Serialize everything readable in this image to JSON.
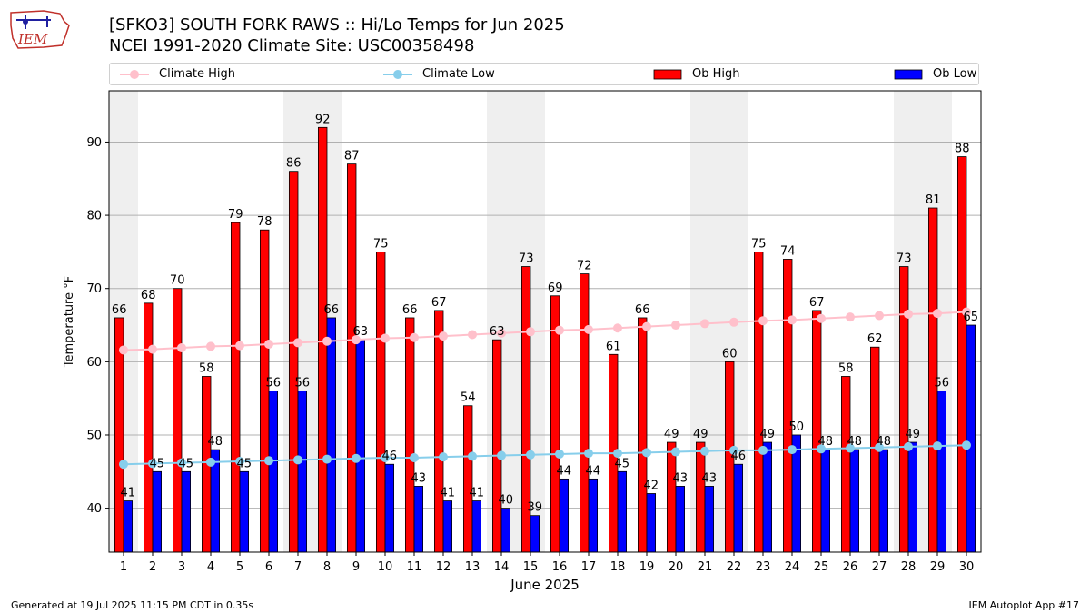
{
  "header": {
    "title": "[SFKO3] SOUTH FORK RAWS :: Hi/Lo Temps for Jun 2025",
    "subtitle": "NCEI 1991-2020 Climate Site: USC00358498",
    "logo_text": "IEM"
  },
  "footer": {
    "left": "Generated at 19 Jul 2025 11:15 PM CDT in 0.35s",
    "right": "IEM Autoplot App #17"
  },
  "legend": {
    "climate_high": "Climate High",
    "climate_low": "Climate Low",
    "ob_high": "Ob High",
    "ob_low": "Ob Low"
  },
  "chart_data": {
    "type": "bar",
    "xlabel": "June 2025",
    "ylabel": "Temperature °F",
    "ylim": [
      34,
      97
    ],
    "yticks": [
      40,
      50,
      60,
      70,
      80,
      90
    ],
    "grid": "horizontal",
    "legend_position": "top",
    "categories": [
      "1",
      "2",
      "3",
      "4",
      "5",
      "6",
      "7",
      "8",
      "9",
      "10",
      "11",
      "12",
      "13",
      "14",
      "15",
      "16",
      "17",
      "18",
      "19",
      "20",
      "21",
      "22",
      "23",
      "24",
      "25",
      "26",
      "27",
      "28",
      "29",
      "30"
    ],
    "weekend_days": [
      1,
      7,
      8,
      14,
      15,
      21,
      22,
      28,
      29
    ],
    "series": [
      {
        "name": "Ob High",
        "kind": "bar",
        "color": "#ff0000",
        "values": [
          66,
          68,
          70,
          58,
          79,
          78,
          86,
          92,
          87,
          75,
          66,
          67,
          54,
          63,
          73,
          69,
          72,
          61,
          66,
          49,
          49,
          60,
          75,
          74,
          67,
          58,
          62,
          73,
          81,
          88
        ]
      },
      {
        "name": "Ob Low",
        "kind": "bar",
        "color": "#0000ff",
        "values": [
          41,
          45,
          45,
          48,
          45,
          56,
          56,
          66,
          63,
          46,
          43,
          41,
          41,
          40,
          39,
          44,
          44,
          45,
          42,
          43,
          43,
          46,
          49,
          50,
          48,
          48,
          48,
          49,
          56,
          65
        ]
      },
      {
        "name": "Climate High",
        "kind": "line",
        "color": "#ffc0cb",
        "values": [
          61.6,
          61.7,
          61.9,
          62.1,
          62.2,
          62.4,
          62.6,
          62.8,
          63.0,
          63.2,
          63.3,
          63.5,
          63.7,
          63.9,
          64.1,
          64.3,
          64.4,
          64.6,
          64.8,
          65.0,
          65.2,
          65.4,
          65.6,
          65.7,
          65.9,
          66.1,
          66.3,
          66.5,
          66.6,
          66.8
        ]
      },
      {
        "name": "Climate Low",
        "kind": "line",
        "color": "#87ceeb",
        "values": [
          46.0,
          46.1,
          46.2,
          46.3,
          46.4,
          46.5,
          46.6,
          46.7,
          46.8,
          46.9,
          46.9,
          47.0,
          47.1,
          47.2,
          47.3,
          47.4,
          47.5,
          47.5,
          47.6,
          47.7,
          47.8,
          47.9,
          47.9,
          48.0,
          48.1,
          48.2,
          48.3,
          48.4,
          48.5,
          48.6
        ]
      }
    ]
  }
}
